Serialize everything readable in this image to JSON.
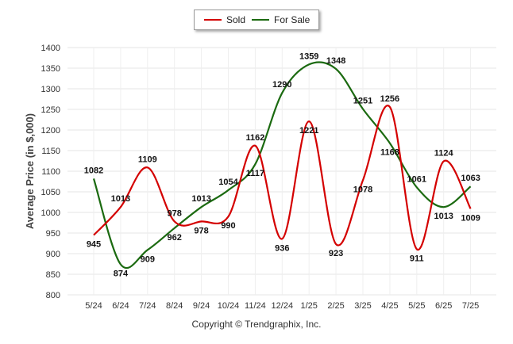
{
  "legend": {
    "items": [
      {
        "label": "Sold",
        "color": "#d40000"
      },
      {
        "label": "For Sale",
        "color": "#1b6a10"
      }
    ]
  },
  "footer": {
    "copyright": "Copyright © Trendgraphix, Inc."
  },
  "chart_data": {
    "type": "line",
    "categories": [
      "5/24",
      "6/24",
      "7/24",
      "8/24",
      "9/24",
      "10/24",
      "11/24",
      "12/24",
      "1/25",
      "2/25",
      "3/25",
      "4/25",
      "5/25",
      "6/25",
      "7/25"
    ],
    "ylabel": "Average Price (in $,000)",
    "xlabel": "",
    "ylim": [
      800,
      1400
    ],
    "yticks": [
      800,
      850,
      900,
      950,
      1000,
      1050,
      1100,
      1150,
      1200,
      1250,
      1300,
      1350,
      1400
    ],
    "grid": true,
    "legend_position": "top-center",
    "series": [
      {
        "name": "Sold",
        "color": "#d40000",
        "values": [
          945,
          1013,
          1109,
          978,
          978,
          990,
          1162,
          936,
          1221,
          923,
          1078,
          1256,
          911,
          1124,
          1009
        ]
      },
      {
        "name": "For Sale",
        "color": "#1b6a10",
        "values": [
          1082,
          874,
          909,
          962,
          1013,
          1054,
          1117,
          1290,
          1359,
          1348,
          1251,
          1168,
          1061,
          1013,
          1063
        ]
      }
    ]
  }
}
